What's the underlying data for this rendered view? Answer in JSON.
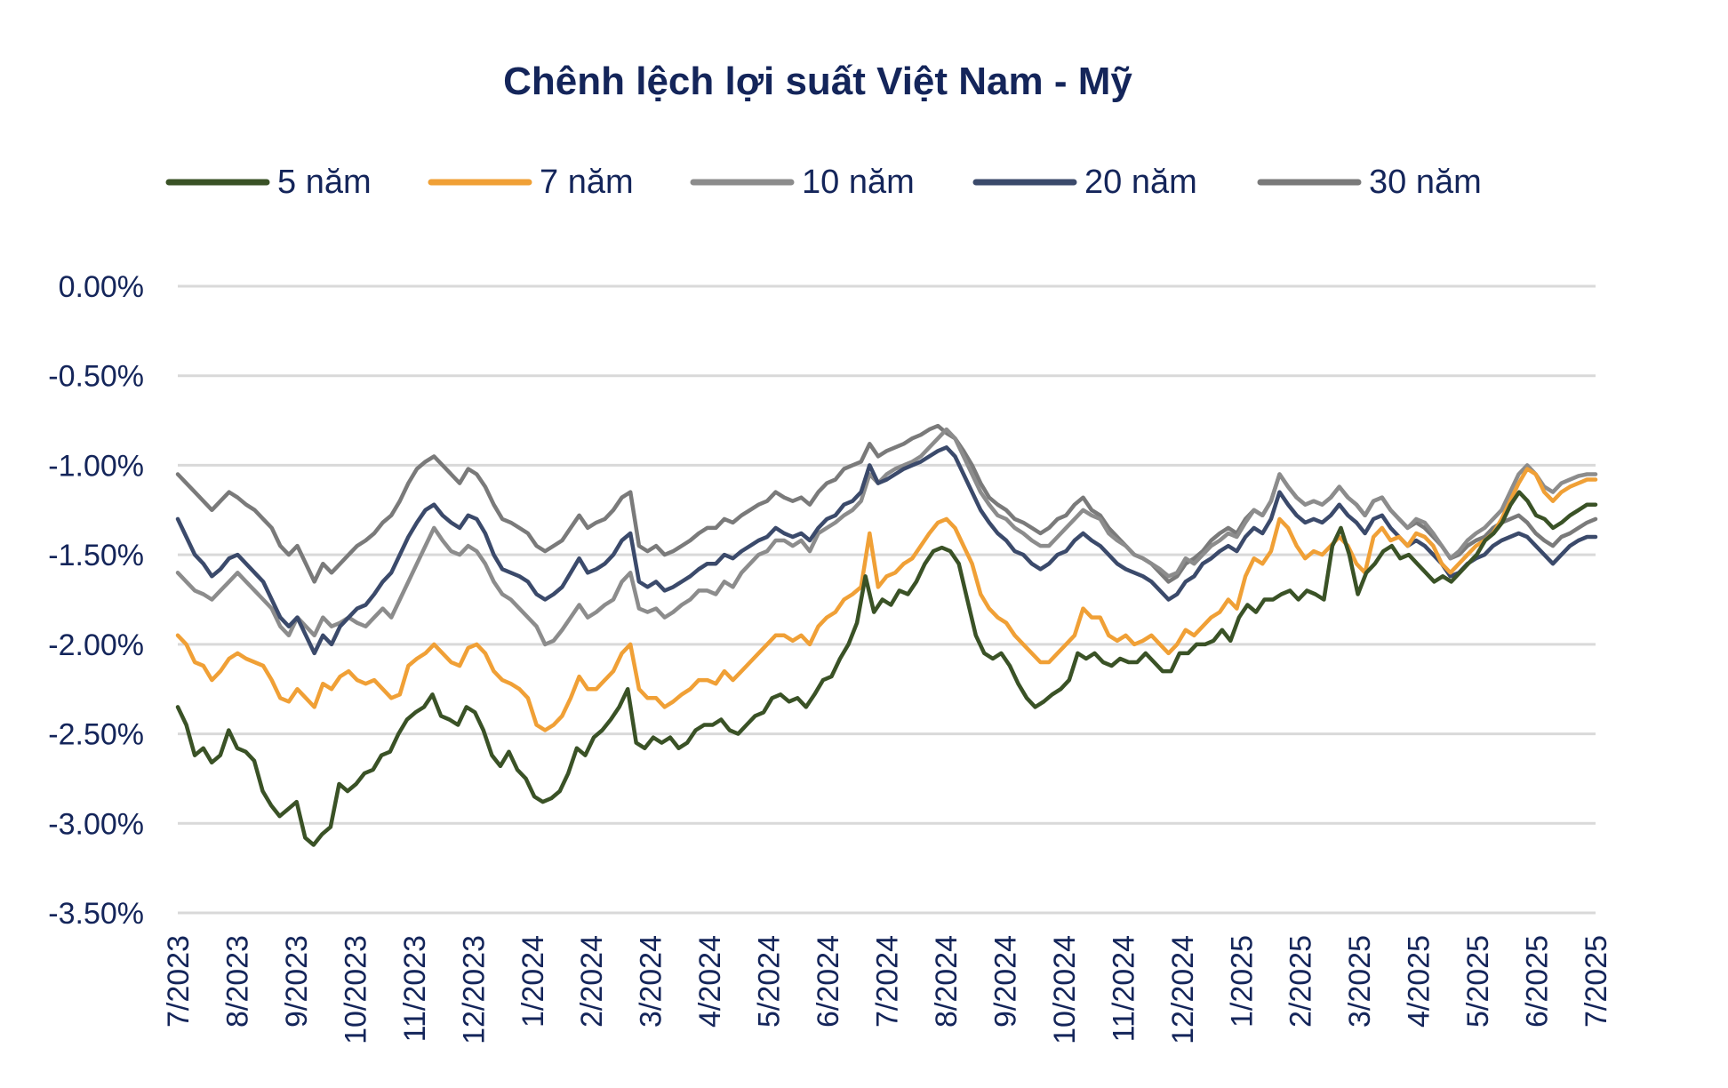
{
  "chart_data": {
    "type": "line",
    "title": "Chênh lệch lợi suất Việt Nam - Mỹ",
    "xlabel": "",
    "ylabel": "",
    "ylim": [
      -3.5,
      0.0
    ],
    "y_ticks": [
      "0.00%",
      "-0.50%",
      "-1.00%",
      "-1.50%",
      "-2.00%",
      "-2.50%",
      "-3.00%",
      "-3.50%"
    ],
    "y_tick_values": [
      0.0,
      -0.5,
      -1.0,
      -1.5,
      -2.0,
      -2.5,
      -3.0,
      -3.5
    ],
    "x_ticks": [
      "7/2023",
      "8/2023",
      "9/2023",
      "10/2023",
      "11/2023",
      "12/2023",
      "1/2024",
      "2/2024",
      "3/2024",
      "4/2024",
      "5/2024",
      "6/2024",
      "7/2024",
      "8/2024",
      "9/2024",
      "10/2024",
      "11/2024",
      "12/2024",
      "1/2025",
      "2/2025",
      "3/2025",
      "4/2025",
      "5/2025",
      "6/2025",
      "7/2025"
    ],
    "grid": true,
    "legend_position": "top",
    "series": [
      {
        "name": "5 năm",
        "color": "#3a5226",
        "values": [
          -2.35,
          -2.45,
          -2.62,
          -2.58,
          -2.66,
          -2.62,
          -2.48,
          -2.58,
          -2.6,
          -2.65,
          -2.82,
          -2.9,
          -2.96,
          -2.92,
          -2.88,
          -3.08,
          -3.12,
          -3.06,
          -3.02,
          -2.78,
          -2.82,
          -2.78,
          -2.72,
          -2.7,
          -2.62,
          -2.6,
          -2.5,
          -2.42,
          -2.38,
          -2.35,
          -2.28,
          -2.4,
          -2.42,
          -2.45,
          -2.35,
          -2.38,
          -2.48,
          -2.62,
          -2.68,
          -2.6,
          -2.7,
          -2.75,
          -2.85,
          -2.88,
          -2.86,
          -2.82,
          -2.72,
          -2.58,
          -2.62,
          -2.52,
          -2.48,
          -2.42,
          -2.35,
          -2.25,
          -2.55,
          -2.58,
          -2.52,
          -2.55,
          -2.52,
          -2.58,
          -2.55,
          -2.48,
          -2.45,
          -2.45,
          -2.42,
          -2.48,
          -2.5,
          -2.45,
          -2.4,
          -2.38,
          -2.3,
          -2.28,
          -2.32,
          -2.3,
          -2.35,
          -2.28,
          -2.2,
          -2.18,
          -2.08,
          -2.0,
          -1.88,
          -1.62,
          -1.82,
          -1.75,
          -1.78,
          -1.7,
          -1.72,
          -1.65,
          -1.55,
          -1.48,
          -1.46,
          -1.48,
          -1.55,
          -1.75,
          -1.95,
          -2.05,
          -2.08,
          -2.05,
          -2.12,
          -2.22,
          -2.3,
          -2.35,
          -2.32,
          -2.28,
          -2.25,
          -2.2,
          -2.05,
          -2.08,
          -2.05,
          -2.1,
          -2.12,
          -2.08,
          -2.1,
          -2.1,
          -2.05,
          -2.1,
          -2.15,
          -2.15,
          -2.05,
          -2.05,
          -2.0,
          -2.0,
          -1.98,
          -1.92,
          -1.98,
          -1.85,
          -1.78,
          -1.82,
          -1.75,
          -1.75,
          -1.72,
          -1.7,
          -1.75,
          -1.7,
          -1.72,
          -1.75,
          -1.45,
          -1.35,
          -1.5,
          -1.72,
          -1.6,
          -1.55,
          -1.48,
          -1.45,
          -1.52,
          -1.5,
          -1.55,
          -1.6,
          -1.65,
          -1.62,
          -1.65,
          -1.6,
          -1.55,
          -1.5,
          -1.42,
          -1.38,
          -1.32,
          -1.22,
          -1.15,
          -1.2,
          -1.28,
          -1.3,
          -1.35,
          -1.32,
          -1.28,
          -1.25,
          -1.22,
          -1.22
        ]
      },
      {
        "name": "7 năm",
        "color": "#f0a036",
        "values": [
          -1.95,
          -2.0,
          -2.1,
          -2.12,
          -2.2,
          -2.15,
          -2.08,
          -2.05,
          -2.08,
          -2.1,
          -2.12,
          -2.2,
          -2.3,
          -2.32,
          -2.25,
          -2.3,
          -2.35,
          -2.22,
          -2.25,
          -2.18,
          -2.15,
          -2.2,
          -2.22,
          -2.2,
          -2.25,
          -2.3,
          -2.28,
          -2.12,
          -2.08,
          -2.05,
          -2.0,
          -2.05,
          -2.1,
          -2.12,
          -2.02,
          -2.0,
          -2.05,
          -2.15,
          -2.2,
          -2.22,
          -2.25,
          -2.3,
          -2.45,
          -2.48,
          -2.45,
          -2.4,
          -2.3,
          -2.18,
          -2.25,
          -2.25,
          -2.2,
          -2.15,
          -2.05,
          -2.0,
          -2.25,
          -2.3,
          -2.3,
          -2.35,
          -2.32,
          -2.28,
          -2.25,
          -2.2,
          -2.2,
          -2.22,
          -2.15,
          -2.2,
          -2.15,
          -2.1,
          -2.05,
          -2.0,
          -1.95,
          -1.95,
          -1.98,
          -1.95,
          -2.0,
          -1.9,
          -1.85,
          -1.82,
          -1.75,
          -1.72,
          -1.68,
          -1.38,
          -1.68,
          -1.62,
          -1.6,
          -1.55,
          -1.52,
          -1.45,
          -1.38,
          -1.32,
          -1.3,
          -1.35,
          -1.45,
          -1.55,
          -1.72,
          -1.8,
          -1.85,
          -1.88,
          -1.95,
          -2.0,
          -2.05,
          -2.1,
          -2.1,
          -2.05,
          -2.0,
          -1.95,
          -1.8,
          -1.85,
          -1.85,
          -1.95,
          -1.98,
          -1.95,
          -2.0,
          -1.98,
          -1.95,
          -2.0,
          -2.05,
          -2.0,
          -1.92,
          -1.95,
          -1.9,
          -1.85,
          -1.82,
          -1.75,
          -1.8,
          -1.62,
          -1.52,
          -1.55,
          -1.48,
          -1.3,
          -1.35,
          -1.45,
          -1.52,
          -1.48,
          -1.5,
          -1.45,
          -1.4,
          -1.45,
          -1.55,
          -1.6,
          -1.4,
          -1.35,
          -1.42,
          -1.4,
          -1.45,
          -1.38,
          -1.4,
          -1.45,
          -1.55,
          -1.6,
          -1.55,
          -1.5,
          -1.45,
          -1.42,
          -1.38,
          -1.3,
          -1.2,
          -1.1,
          -1.02,
          -1.05,
          -1.15,
          -1.2,
          -1.15,
          -1.12,
          -1.1,
          -1.08,
          -1.08
        ]
      },
      {
        "name": "10 năm",
        "color": "#8c8c8c",
        "values": [
          -1.6,
          -1.65,
          -1.7,
          -1.72,
          -1.75,
          -1.7,
          -1.65,
          -1.6,
          -1.65,
          -1.7,
          -1.75,
          -1.8,
          -1.9,
          -1.95,
          -1.85,
          -1.9,
          -1.95,
          -1.85,
          -1.9,
          -1.88,
          -1.85,
          -1.88,
          -1.9,
          -1.85,
          -1.8,
          -1.85,
          -1.75,
          -1.65,
          -1.55,
          -1.45,
          -1.35,
          -1.42,
          -1.48,
          -1.5,
          -1.45,
          -1.48,
          -1.55,
          -1.65,
          -1.72,
          -1.75,
          -1.8,
          -1.85,
          -1.9,
          -2.0,
          -1.98,
          -1.92,
          -1.85,
          -1.78,
          -1.85,
          -1.82,
          -1.78,
          -1.75,
          -1.65,
          -1.6,
          -1.8,
          -1.82,
          -1.8,
          -1.85,
          -1.82,
          -1.78,
          -1.75,
          -1.7,
          -1.7,
          -1.72,
          -1.65,
          -1.68,
          -1.6,
          -1.55,
          -1.5,
          -1.48,
          -1.42,
          -1.42,
          -1.45,
          -1.42,
          -1.48,
          -1.38,
          -1.35,
          -1.32,
          -1.28,
          -1.25,
          -1.2,
          -1.05,
          -1.1,
          -1.05,
          -1.02,
          -1.0,
          -0.98,
          -0.95,
          -0.9,
          -0.85,
          -0.8,
          -0.85,
          -0.95,
          -1.05,
          -1.15,
          -1.22,
          -1.28,
          -1.3,
          -1.35,
          -1.38,
          -1.42,
          -1.45,
          -1.45,
          -1.4,
          -1.35,
          -1.3,
          -1.25,
          -1.28,
          -1.3,
          -1.38,
          -1.42,
          -1.45,
          -1.5,
          -1.52,
          -1.55,
          -1.58,
          -1.62,
          -1.6,
          -1.52,
          -1.55,
          -1.5,
          -1.45,
          -1.42,
          -1.38,
          -1.4,
          -1.32,
          -1.25,
          -1.28,
          -1.2,
          -1.05,
          -1.12,
          -1.18,
          -1.22,
          -1.2,
          -1.22,
          -1.18,
          -1.12,
          -1.18,
          -1.22,
          -1.28,
          -1.2,
          -1.18,
          -1.25,
          -1.3,
          -1.35,
          -1.3,
          -1.32,
          -1.38,
          -1.45,
          -1.52,
          -1.48,
          -1.42,
          -1.38,
          -1.35,
          -1.3,
          -1.25,
          -1.15,
          -1.05,
          -1.0,
          -1.05,
          -1.12,
          -1.15,
          -1.1,
          -1.08,
          -1.06,
          -1.05,
          -1.05
        ]
      },
      {
        "name": "20 năm",
        "color": "#3b4a6b",
        "values": [
          -1.3,
          -1.4,
          -1.5,
          -1.55,
          -1.62,
          -1.58,
          -1.52,
          -1.5,
          -1.55,
          -1.6,
          -1.65,
          -1.75,
          -1.85,
          -1.9,
          -1.85,
          -1.95,
          -2.05,
          -1.95,
          -2.0,
          -1.9,
          -1.85,
          -1.8,
          -1.78,
          -1.72,
          -1.65,
          -1.6,
          -1.5,
          -1.4,
          -1.32,
          -1.25,
          -1.22,
          -1.28,
          -1.32,
          -1.35,
          -1.28,
          -1.3,
          -1.38,
          -1.5,
          -1.58,
          -1.6,
          -1.62,
          -1.65,
          -1.72,
          -1.75,
          -1.72,
          -1.68,
          -1.6,
          -1.52,
          -1.6,
          -1.58,
          -1.55,
          -1.5,
          -1.42,
          -1.38,
          -1.65,
          -1.68,
          -1.65,
          -1.7,
          -1.68,
          -1.65,
          -1.62,
          -1.58,
          -1.55,
          -1.55,
          -1.5,
          -1.52,
          -1.48,
          -1.45,
          -1.42,
          -1.4,
          -1.35,
          -1.38,
          -1.4,
          -1.38,
          -1.42,
          -1.35,
          -1.3,
          -1.28,
          -1.22,
          -1.2,
          -1.15,
          -1.0,
          -1.1,
          -1.08,
          -1.05,
          -1.02,
          -1.0,
          -0.98,
          -0.95,
          -0.92,
          -0.9,
          -0.95,
          -1.05,
          -1.15,
          -1.25,
          -1.32,
          -1.38,
          -1.42,
          -1.48,
          -1.5,
          -1.55,
          -1.58,
          -1.55,
          -1.5,
          -1.48,
          -1.42,
          -1.38,
          -1.42,
          -1.45,
          -1.5,
          -1.55,
          -1.58,
          -1.6,
          -1.62,
          -1.65,
          -1.7,
          -1.75,
          -1.72,
          -1.65,
          -1.62,
          -1.55,
          -1.52,
          -1.48,
          -1.45,
          -1.48,
          -1.4,
          -1.35,
          -1.38,
          -1.3,
          -1.15,
          -1.22,
          -1.28,
          -1.32,
          -1.3,
          -1.32,
          -1.28,
          -1.22,
          -1.28,
          -1.32,
          -1.38,
          -1.3,
          -1.28,
          -1.35,
          -1.4,
          -1.45,
          -1.42,
          -1.45,
          -1.5,
          -1.55,
          -1.62,
          -1.6,
          -1.55,
          -1.52,
          -1.5,
          -1.45,
          -1.42,
          -1.4,
          -1.38,
          -1.4,
          -1.45,
          -1.5,
          -1.55,
          -1.5,
          -1.45,
          -1.42,
          -1.4,
          -1.4
        ]
      },
      {
        "name": "30 năm",
        "color": "#7a7a7a",
        "values": [
          -1.05,
          -1.1,
          -1.15,
          -1.2,
          -1.25,
          -1.2,
          -1.15,
          -1.18,
          -1.22,
          -1.25,
          -1.3,
          -1.35,
          -1.45,
          -1.5,
          -1.45,
          -1.55,
          -1.65,
          -1.55,
          -1.6,
          -1.55,
          -1.5,
          -1.45,
          -1.42,
          -1.38,
          -1.32,
          -1.28,
          -1.2,
          -1.1,
          -1.02,
          -0.98,
          -0.95,
          -1.0,
          -1.05,
          -1.1,
          -1.02,
          -1.05,
          -1.12,
          -1.22,
          -1.3,
          -1.32,
          -1.35,
          -1.38,
          -1.45,
          -1.48,
          -1.45,
          -1.42,
          -1.35,
          -1.28,
          -1.35,
          -1.32,
          -1.3,
          -1.25,
          -1.18,
          -1.15,
          -1.45,
          -1.48,
          -1.45,
          -1.5,
          -1.48,
          -1.45,
          -1.42,
          -1.38,
          -1.35,
          -1.35,
          -1.3,
          -1.32,
          -1.28,
          -1.25,
          -1.22,
          -1.2,
          -1.15,
          -1.18,
          -1.2,
          -1.18,
          -1.22,
          -1.15,
          -1.1,
          -1.08,
          -1.02,
          -1.0,
          -0.98,
          -0.88,
          -0.95,
          -0.92,
          -0.9,
          -0.88,
          -0.85,
          -0.83,
          -0.8,
          -0.78,
          -0.82,
          -0.85,
          -0.92,
          -1.0,
          -1.1,
          -1.18,
          -1.22,
          -1.25,
          -1.3,
          -1.32,
          -1.35,
          -1.38,
          -1.35,
          -1.3,
          -1.28,
          -1.22,
          -1.18,
          -1.25,
          -1.28,
          -1.35,
          -1.4,
          -1.45,
          -1.5,
          -1.52,
          -1.55,
          -1.6,
          -1.65,
          -1.62,
          -1.55,
          -1.52,
          -1.48,
          -1.42,
          -1.38,
          -1.35,
          -1.38,
          -1.3,
          -1.25,
          -1.28,
          -1.2,
          -1.05,
          -1.12,
          -1.18,
          -1.22,
          -1.2,
          -1.22,
          -1.18,
          -1.12,
          -1.18,
          -1.22,
          -1.28,
          -1.2,
          -1.18,
          -1.25,
          -1.3,
          -1.35,
          -1.32,
          -1.35,
          -1.4,
          -1.45,
          -1.52,
          -1.5,
          -1.45,
          -1.42,
          -1.4,
          -1.35,
          -1.32,
          -1.3,
          -1.28,
          -1.32,
          -1.38,
          -1.42,
          -1.45,
          -1.4,
          -1.38,
          -1.35,
          -1.32,
          -1.3
        ]
      }
    ]
  }
}
